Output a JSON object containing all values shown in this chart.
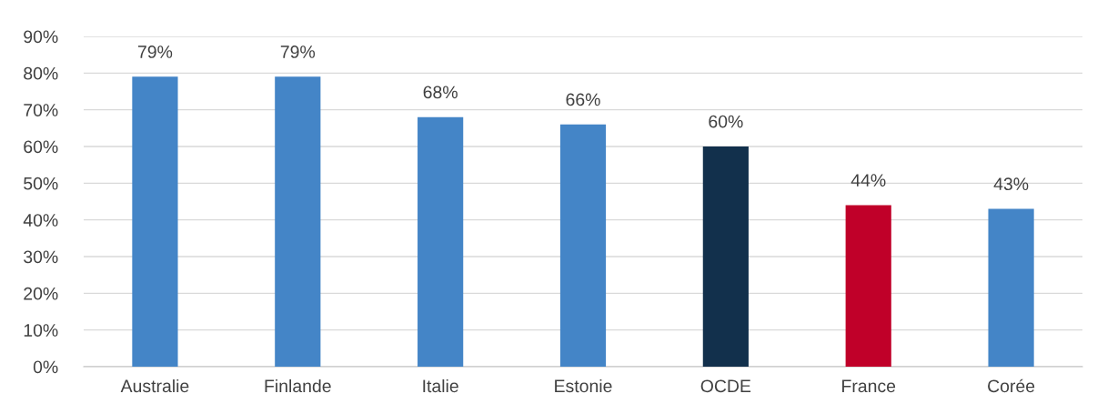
{
  "chart_data": {
    "type": "bar",
    "categories": [
      "Australie",
      "Finlande",
      "Italie",
      "Estonie",
      "OCDE",
      "France",
      "Corée"
    ],
    "values": [
      79,
      79,
      68,
      66,
      60,
      44,
      43
    ],
    "colors": [
      "#4485c7",
      "#4485c7",
      "#4485c7",
      "#4485c7",
      "#12304c",
      "#c00029",
      "#4485c7"
    ],
    "value_labels": [
      "79%",
      "79%",
      "68%",
      "66%",
      "60%",
      "44%",
      "43%"
    ],
    "ylim": [
      0,
      90
    ],
    "yticks": [
      {
        "value": 0,
        "label": "0%"
      },
      {
        "value": 10,
        "label": "10%"
      },
      {
        "value": 20,
        "label": "20%"
      },
      {
        "value": 30,
        "label": "30%"
      },
      {
        "value": 40,
        "label": "40%"
      },
      {
        "value": 50,
        "label": "50%"
      },
      {
        "value": 60,
        "label": "60%"
      },
      {
        "value": 70,
        "label": "70%"
      },
      {
        "value": 80,
        "label": "80%"
      },
      {
        "value": 90,
        "label": "90%"
      }
    ],
    "grid": "y"
  }
}
